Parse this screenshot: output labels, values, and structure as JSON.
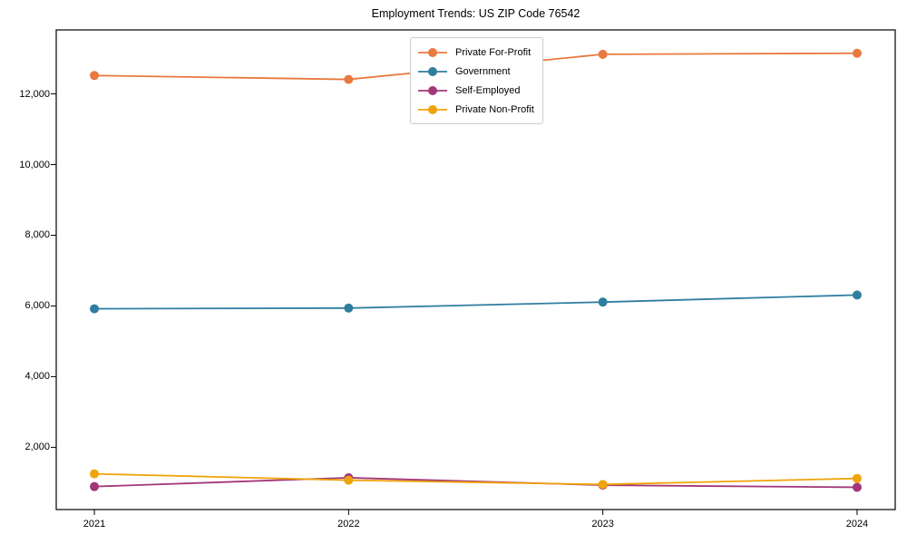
{
  "figure": {
    "background": "#ffffff",
    "spine_color": "#000000",
    "tick_color": "#000000"
  },
  "chart_data": {
    "type": "line",
    "title": "Employment Trends: US ZIP Code 76542",
    "x": [
      2021,
      2022,
      2023,
      2024
    ],
    "x_tick_labels": [
      "2021",
      "2022",
      "2023",
      "2024"
    ],
    "xlim": [
      2020.85,
      2024.15
    ],
    "ylim": [
      240,
      13810
    ],
    "yticks": [
      {
        "value": 2000,
        "label": "2,000"
      },
      {
        "value": 4000,
        "label": "4,000"
      },
      {
        "value": 6000,
        "label": "6,000"
      },
      {
        "value": 8000,
        "label": "8,000"
      },
      {
        "value": 10000,
        "label": "10,000"
      },
      {
        "value": 12000,
        "label": "12,000"
      }
    ],
    "grid": false,
    "legend_position": "upper center",
    "marker": "circle",
    "series": [
      {
        "name": "Private For-Profit",
        "color": "#e8793f",
        "values": [
          12520,
          12410,
          13120,
          13150
        ]
      },
      {
        "name": "Government",
        "color": "#2f7ea0",
        "values": [
          5920,
          5940,
          6110,
          6310
        ]
      },
      {
        "name": "Self-Employed",
        "color": "#a23779",
        "values": [
          890,
          1140,
          930,
          870
        ]
      },
      {
        "name": "Private Non-Profit",
        "color": "#f0a30a",
        "values": [
          1250,
          1070,
          950,
          1120
        ]
      }
    ]
  }
}
